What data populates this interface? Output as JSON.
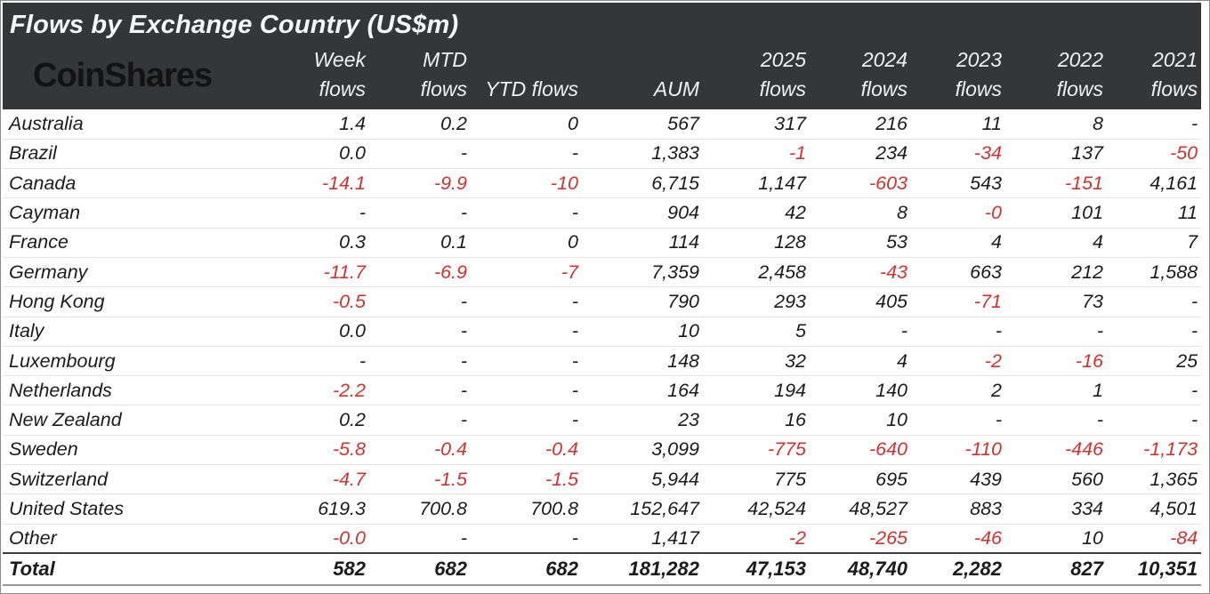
{
  "title": "Flows by Exchange Country (US$m)",
  "brand": "CoinShares",
  "colors": {
    "header_bg": "#353638",
    "title_text": "#f7f7f7",
    "header_text": "#f0f0f0",
    "body_text": "#1b1b1b",
    "negative": "#cf322f",
    "brand_text": "#131313",
    "row_divider": "#e4e4e4",
    "total_divider_top": "#3b3b3b",
    "total_divider_bottom": "#9a9a9a",
    "page_border": "#8a8a8a"
  },
  "chart_data": {
    "type": "table",
    "title": "Flows by Exchange Country (US$m)",
    "unit": "US$m",
    "columns": [
      {
        "top": "Week",
        "bottom": "flows"
      },
      {
        "top": "MTD",
        "bottom": "flows"
      },
      {
        "top": "",
        "bottom": "YTD flows"
      },
      {
        "top": "",
        "bottom": "AUM"
      },
      {
        "top": "2025",
        "bottom": "flows"
      },
      {
        "top": "2024",
        "bottom": "flows"
      },
      {
        "top": "2023",
        "bottom": "flows"
      },
      {
        "top": "2022",
        "bottom": "flows"
      },
      {
        "top": "2021",
        "bottom": "flows"
      }
    ],
    "rows": [
      {
        "country": "Australia",
        "values": [
          "1.4",
          "0.2",
          "0",
          "567",
          "317",
          "216",
          "11",
          "8",
          "-"
        ]
      },
      {
        "country": "Brazil",
        "values": [
          "0.0",
          "-",
          "-",
          "1,383",
          "-1",
          "234",
          "-34",
          "137",
          "-50"
        ]
      },
      {
        "country": "Canada",
        "values": [
          "-14.1",
          "-9.9",
          "-10",
          "6,715",
          "1,147",
          "-603",
          "543",
          "-151",
          "4,161"
        ]
      },
      {
        "country": "Cayman",
        "values": [
          "-",
          "-",
          "-",
          "904",
          "42",
          "8",
          "-0",
          "101",
          "11"
        ]
      },
      {
        "country": "France",
        "values": [
          "0.3",
          "0.1",
          "0",
          "114",
          "128",
          "53",
          "4",
          "4",
          "7"
        ]
      },
      {
        "country": "Germany",
        "values": [
          "-11.7",
          "-6.9",
          "-7",
          "7,359",
          "2,458",
          "-43",
          "663",
          "212",
          "1,588"
        ]
      },
      {
        "country": "Hong Kong",
        "values": [
          "-0.5",
          "-",
          "-",
          "790",
          "293",
          "405",
          "-71",
          "73",
          "-"
        ]
      },
      {
        "country": "Italy",
        "values": [
          "0.0",
          "-",
          "-",
          "10",
          "5",
          "-",
          "-",
          "-",
          "-"
        ]
      },
      {
        "country": "Luxembourg",
        "values": [
          "-",
          "-",
          "-",
          "148",
          "32",
          "4",
          "-2",
          "-16",
          "25"
        ]
      },
      {
        "country": "Netherlands",
        "values": [
          "-2.2",
          "-",
          "-",
          "164",
          "194",
          "140",
          "2",
          "1",
          "-"
        ]
      },
      {
        "country": "New Zealand",
        "values": [
          "0.2",
          "-",
          "-",
          "23",
          "16",
          "10",
          "-",
          "-",
          "-"
        ]
      },
      {
        "country": "Sweden",
        "values": [
          "-5.8",
          "-0.4",
          "-0.4",
          "3,099",
          "-775",
          "-640",
          "-110",
          "-446",
          "-1,173"
        ]
      },
      {
        "country": "Switzerland",
        "values": [
          "-4.7",
          "-1.5",
          "-1.5",
          "5,944",
          "775",
          "695",
          "439",
          "560",
          "1,365"
        ]
      },
      {
        "country": "United States",
        "values": [
          "619.3",
          "700.8",
          "700.8",
          "152,647",
          "42,524",
          "48,527",
          "883",
          "334",
          "4,501"
        ]
      },
      {
        "country": "Other",
        "values": [
          "-0.0",
          "-",
          "-",
          "1,417",
          "-2",
          "-265",
          "-46",
          "10",
          "-84"
        ]
      }
    ],
    "total": {
      "label": "Total",
      "values": [
        "582",
        "682",
        "682",
        "181,282",
        "47,153",
        "48,740",
        "2,282",
        "827",
        "10,351"
      ]
    }
  }
}
